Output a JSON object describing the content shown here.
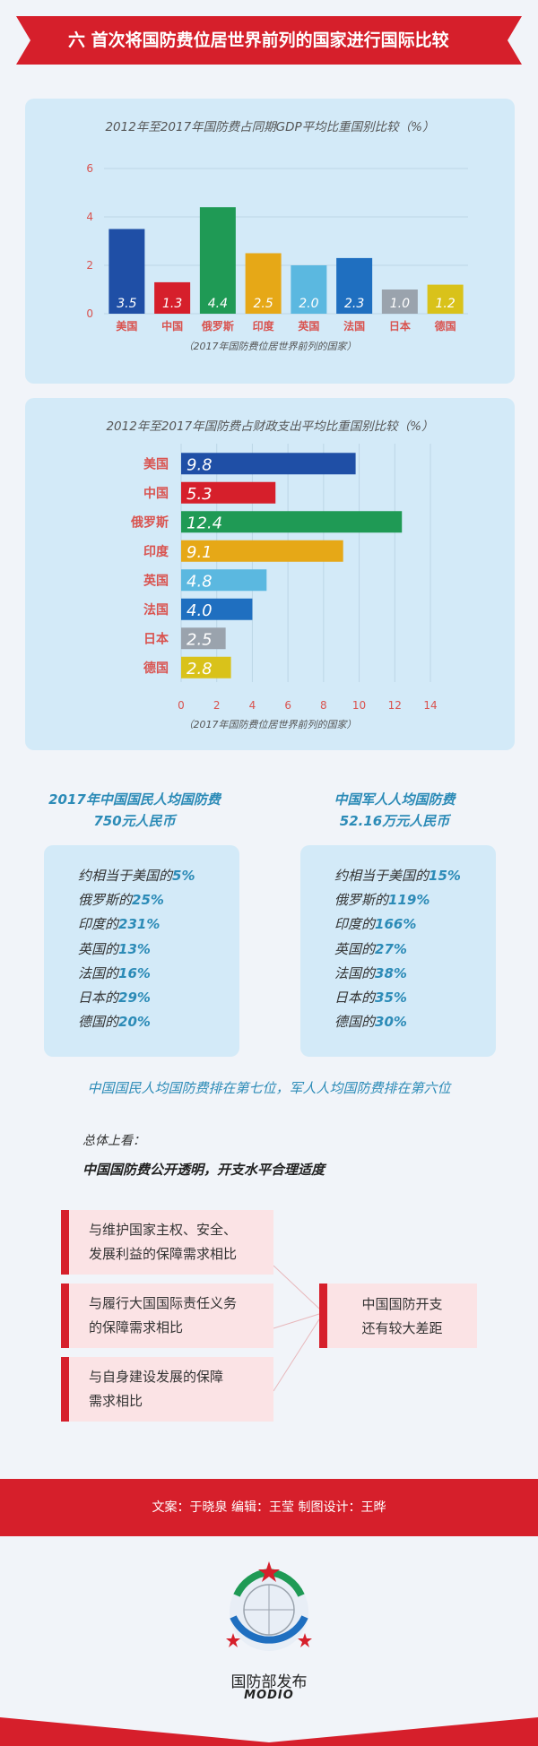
{
  "header": {
    "title": "六  首次将国防费位居世界前列的国家进行国际比较"
  },
  "gdp_chart": {
    "title": "2012年至2017年国防费占同期GDP平均比重国别比较（%）",
    "note": "（2017年国防费位居世界前列的国家）"
  },
  "fiscal_chart": {
    "title": "2012年至2017年国防费占财政支出平均比重国别比较（%）",
    "note": "（2017年国防费位居世界前列的国家）"
  },
  "chart_data": [
    {
      "type": "bar",
      "title": "2012年至2017年国防费占同期GDP平均比重国别比较（%）",
      "categories": [
        "美国",
        "中国",
        "俄罗斯",
        "印度",
        "英国",
        "法国",
        "日本",
        "德国"
      ],
      "values": [
        3.5,
        1.3,
        4.4,
        2.5,
        2.0,
        2.3,
        1.0,
        1.2
      ],
      "value_labels": [
        "3.5",
        "1.3",
        "4.4",
        "2.5",
        "2.0",
        "2.3",
        "1.0",
        "1.2"
      ],
      "colors": [
        "#1f4fa6",
        "#d61f2b",
        "#1f9a55",
        "#e6a817",
        "#5bb8e0",
        "#1f6fc0",
        "#9aa3ad",
        "#d9c21a"
      ],
      "ylim": [
        0,
        6
      ],
      "yticks": [
        "0",
        "2",
        "4",
        "6"
      ],
      "xlabel": "（2017年国防费位居世界前列的国家）",
      "grid": true,
      "orientation": "vertical"
    },
    {
      "type": "bar",
      "title": "2012年至2017年国防费占财政支出平均比重国别比较（%）",
      "categories": [
        "美国",
        "中国",
        "俄罗斯",
        "印度",
        "英国",
        "法国",
        "日本",
        "德国"
      ],
      "values": [
        9.8,
        5.3,
        12.4,
        9.1,
        4.8,
        4.0,
        2.5,
        2.8
      ],
      "value_labels": [
        "9.8",
        "5.3",
        "12.4",
        "9.1",
        "4.8",
        "4.0",
        "2.5",
        "2.8"
      ],
      "colors": [
        "#1f4fa6",
        "#d61f2b",
        "#1f9a55",
        "#e6a817",
        "#5bb8e0",
        "#1f6fc0",
        "#9aa3ad",
        "#d9c21a"
      ],
      "xlim": [
        0,
        14
      ],
      "xticks": [
        "0",
        "2",
        "4",
        "6",
        "8",
        "10",
        "12",
        "14"
      ],
      "xlabel": "（2017年国防费位居世界前列的国家）",
      "grid": true,
      "orientation": "horizontal"
    }
  ],
  "per_capita": {
    "citizen": {
      "heading1": "2017年中国国民人均国防费",
      "heading2": "750元人民币",
      "lines": [
        {
          "prefix": "约相当于美国的",
          "value": "5%"
        },
        {
          "prefix": "俄罗斯的",
          "value": "25%"
        },
        {
          "prefix": "印度的",
          "value": "231%"
        },
        {
          "prefix": "英国的",
          "value": "13%"
        },
        {
          "prefix": "法国的",
          "value": "16%"
        },
        {
          "prefix": "日本的",
          "value": "29%"
        },
        {
          "prefix": "德国的",
          "value": "20%"
        }
      ]
    },
    "soldier": {
      "heading1": "中国军人人均国防费",
      "heading2": "52.16万元人民币",
      "lines": [
        {
          "prefix": "约相当于美国的",
          "value": "15%"
        },
        {
          "prefix": "俄罗斯的",
          "value": "119%"
        },
        {
          "prefix": "印度的",
          "value": "166%"
        },
        {
          "prefix": "英国的",
          "value": "27%"
        },
        {
          "prefix": "法国的",
          "value": "38%"
        },
        {
          "prefix": "日本的",
          "value": "35%"
        },
        {
          "prefix": "德国的",
          "value": "30%"
        }
      ]
    },
    "rank_note": "中国国民人均国防费排在第七位，军人人均国防费排在第六位"
  },
  "summary": {
    "label": "总体上看：",
    "main": "中国国防费公开透明，开支水平合理适度",
    "comparisons": [
      {
        "line1": "与维护国家主权、安全、",
        "line2": "发展利益的保障需求相比"
      },
      {
        "line1": "与履行大国国际责任义务",
        "line2": "的保障需求相比"
      },
      {
        "line1": "与自身建设发展的保障",
        "line2": "需求相比"
      }
    ],
    "result_line1": "中国国防开支",
    "result_line2": "还有较大差距"
  },
  "footer": {
    "credits": "文案：于晓泉    编辑：王莹    制图设计：王晔",
    "brand_name": "国防部发布",
    "brand_sub": "MODIO"
  },
  "colors": {
    "accent_red": "#d61f2b",
    "accent_blue": "#2c8bb7",
    "panel_bg": "#d3eaf8"
  }
}
